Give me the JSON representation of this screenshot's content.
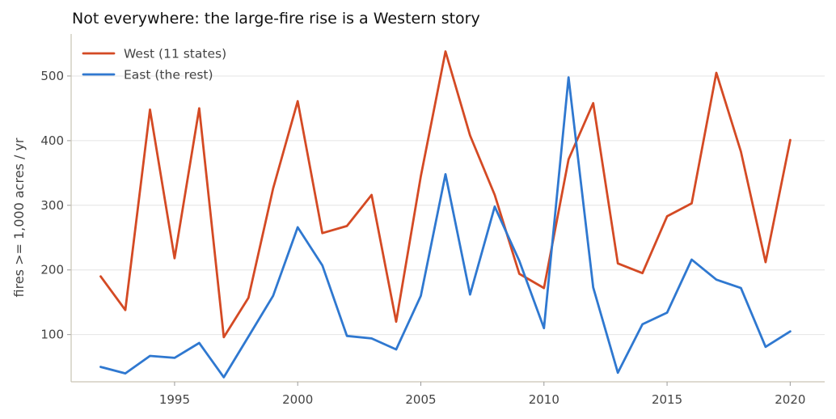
{
  "chart_data": {
    "type": "line",
    "title": "Not everywhere: the large-fire rise is a Western story",
    "xlabel": "",
    "ylabel": "fires >= 1,000 acres / yr",
    "xlim": [
      1990.8,
      2021.4
    ],
    "ylim": [
      27,
      565
    ],
    "x_ticks": [
      1995,
      2000,
      2005,
      2010,
      2015,
      2020
    ],
    "y_ticks": [
      100,
      200,
      300,
      400,
      500
    ],
    "grid": "horizontal",
    "legend_position": "top-left",
    "x": [
      1992,
      1993,
      1994,
      1995,
      1996,
      1997,
      1998,
      1999,
      2000,
      2001,
      2002,
      2003,
      2004,
      2005,
      2006,
      2007,
      2008,
      2009,
      2010,
      2011,
      2012,
      2013,
      2014,
      2015,
      2016,
      2017,
      2018,
      2019,
      2020
    ],
    "series": [
      {
        "name": "West (11 states)",
        "color": "#d44a24",
        "values": [
          190,
          138,
          448,
          218,
          450,
          96,
          157,
          326,
          461,
          257,
          268,
          316,
          120,
          345,
          538,
          408,
          316,
          194,
          172,
          371,
          458,
          210,
          195,
          283,
          303,
          505,
          383,
          212,
          401
        ]
      },
      {
        "name": "East (the rest)",
        "color": "#2f78d0",
        "values": [
          50,
          40,
          67,
          64,
          87,
          34,
          97,
          160,
          266,
          207,
          98,
          94,
          77,
          160,
          348,
          162,
          298,
          214,
          110,
          498,
          173,
          41,
          116,
          134,
          216,
          185,
          172,
          81,
          105
        ]
      }
    ]
  }
}
